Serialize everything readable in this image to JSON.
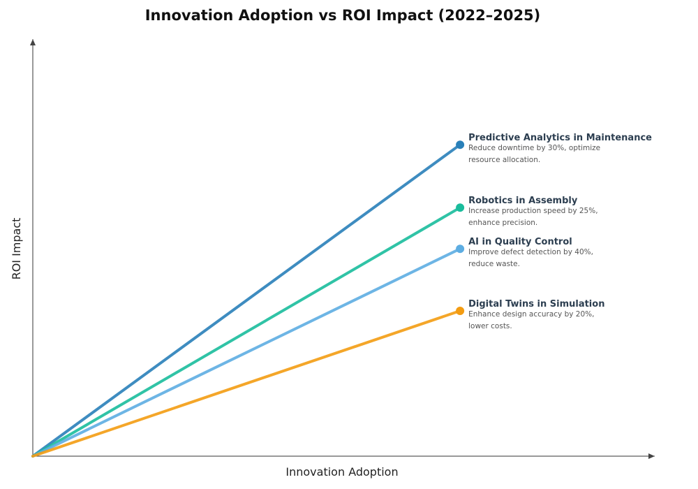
{
  "chart_data": {
    "type": "line",
    "title": "Innovation Adoption vs ROI Impact (2022–2025)",
    "xlabel": "Innovation Adoption",
    "ylabel": "ROI Impact",
    "xlim": [
      0,
      100
    ],
    "ylim": [
      0,
      100
    ],
    "grid": false,
    "legend": "none",
    "series": [
      {
        "name": "Predictive Analytics in Maintenance",
        "description": [
          "Reduce downtime by 30%, optimize",
          "resource allocation."
        ],
        "color": "#2980b9",
        "x": [
          0,
          68.7
        ],
        "y": [
          0,
          74.8
        ]
      },
      {
        "name": "Robotics in Assembly",
        "description": [
          "Increase production speed by 25%,",
          "enhance precision."
        ],
        "color": "#1abc9c",
        "x": [
          0,
          68.7
        ],
        "y": [
          0,
          59.7
        ]
      },
      {
        "name": "AI in Quality Control",
        "description": [
          "Improve defect detection by 40%,",
          "reduce waste."
        ],
        "color": "#5dade2",
        "x": [
          0,
          68.7
        ],
        "y": [
          0,
          49.8
        ]
      },
      {
        "name": "Digital Twins in Simulation",
        "description": [
          "Enhance design accuracy by 20%,",
          "lower costs."
        ],
        "color": "#f39c12",
        "x": [
          0,
          68.7
        ],
        "y": [
          0,
          34.9
        ]
      }
    ]
  }
}
